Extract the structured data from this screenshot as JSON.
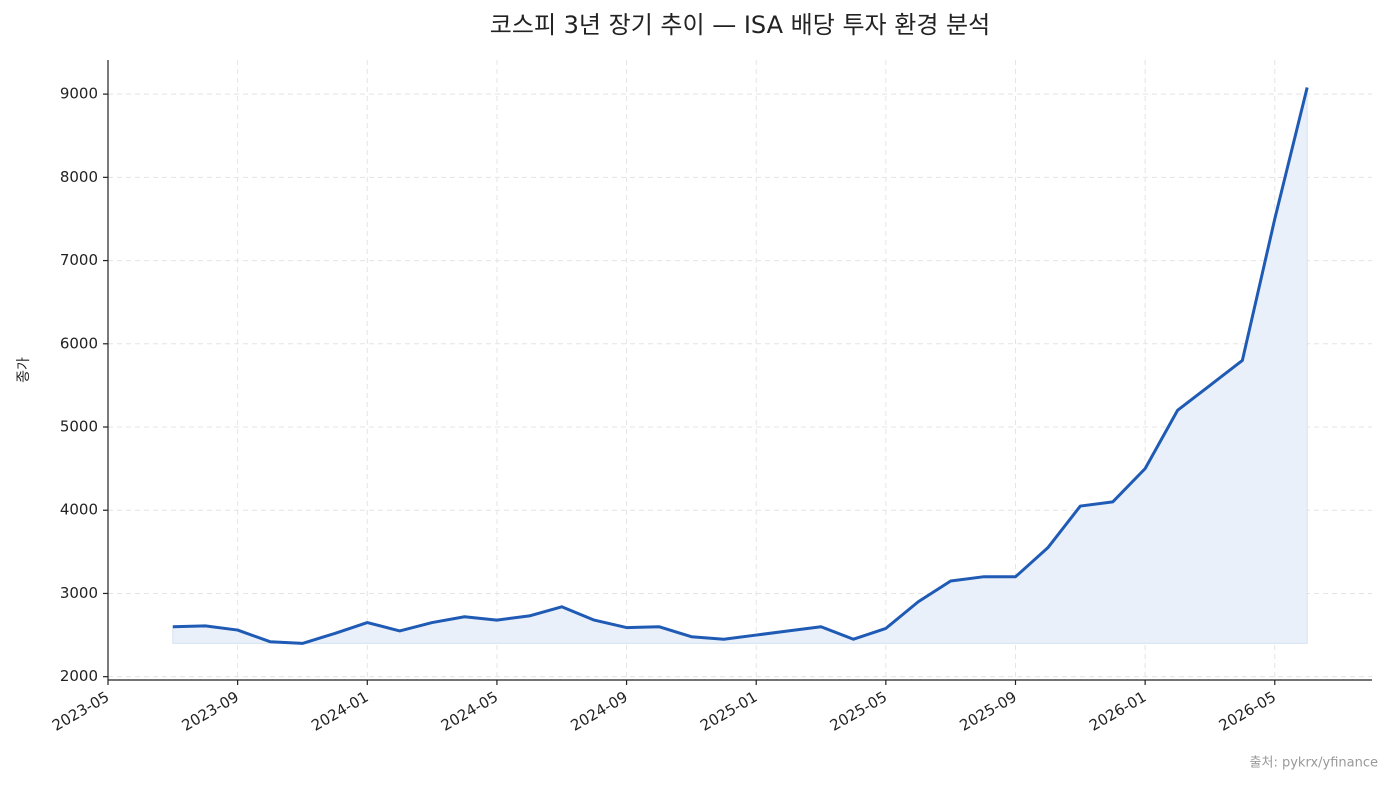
{
  "chart_data": {
    "type": "line",
    "title": "코스피 3년 장기 추이 — ISA 배당 투자 환경 분석",
    "ylabel": "종가",
    "source": "출처: pykrx/yfinance",
    "x": [
      "2023-07",
      "2023-08",
      "2023-09",
      "2023-10",
      "2023-11",
      "2023-12",
      "2024-01",
      "2024-02",
      "2024-03",
      "2024-04",
      "2024-05",
      "2024-06",
      "2024-07",
      "2024-08",
      "2024-09",
      "2024-10",
      "2024-11",
      "2024-12",
      "2025-01",
      "2025-02",
      "2025-03",
      "2025-04",
      "2025-05",
      "2025-06",
      "2025-07",
      "2025-08",
      "2025-09",
      "2025-10",
      "2025-11",
      "2025-12",
      "2026-01",
      "2026-02",
      "2026-03",
      "2026-04",
      "2026-05",
      "2026-06"
    ],
    "series": [
      {
        "name": "종가",
        "color": "#1f5bb5",
        "fill": "#e9f0f9",
        "values": [
          2600,
          2610,
          2560,
          2420,
          2400,
          2520,
          2650,
          2550,
          2650,
          2720,
          2680,
          2730,
          2840,
          2680,
          2590,
          2600,
          2480,
          2450,
          2500,
          2550,
          2600,
          2450,
          2580,
          2900,
          3150,
          3200,
          3200,
          3550,
          4050,
          4100,
          4500,
          5200,
          5500,
          5800,
          7500,
          9080
        ]
      }
    ],
    "xlim": [
      "2023-05",
      "2026-08"
    ],
    "xticks": [
      "2023-05",
      "2023-09",
      "2024-01",
      "2024-05",
      "2024-09",
      "2025-01",
      "2025-05",
      "2025-09",
      "2026-01",
      "2026-05"
    ],
    "ylim": [
      1960,
      9410
    ],
    "yticks": [
      2000,
      3000,
      4000,
      5000,
      6000,
      7000,
      8000,
      9000
    ],
    "grid": true
  }
}
